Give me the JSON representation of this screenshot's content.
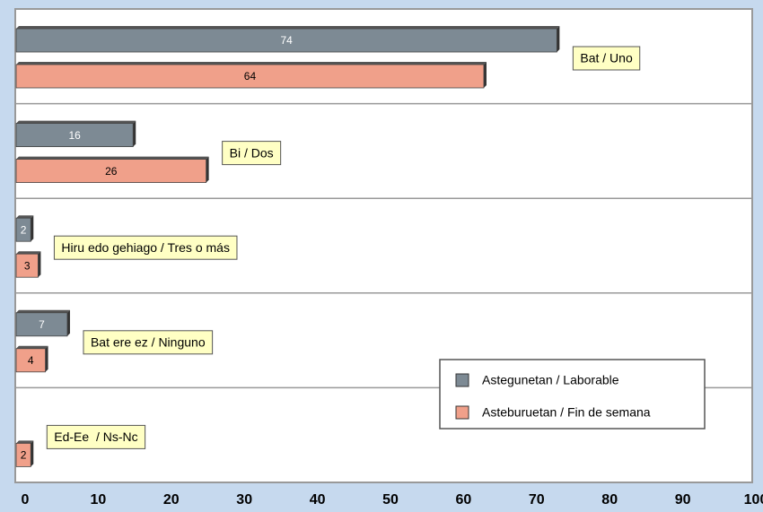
{
  "chart_data": {
    "type": "bar",
    "orientation": "horizontal",
    "categories": [
      "Bat / Uno",
      "Bi / Dos",
      "Hiru edo gehiago / Tres o más",
      "Bat ere ez / Ninguno",
      "Ed-Ee  / Ns-Nc"
    ],
    "series": [
      {
        "name": "Astegunetan / Laborable",
        "color": "#7d8a94",
        "values": [
          74,
          16,
          2,
          7,
          null
        ]
      },
      {
        "name": "Asteburuetan / Fin de semana",
        "color": "#f0a08a",
        "values": [
          64,
          26,
          3,
          4,
          2
        ]
      }
    ],
    "xlim": [
      0,
      100
    ],
    "xticks": [
      0,
      10,
      20,
      30,
      40,
      50,
      60,
      70,
      80,
      90,
      100
    ],
    "legend": "lower right"
  }
}
